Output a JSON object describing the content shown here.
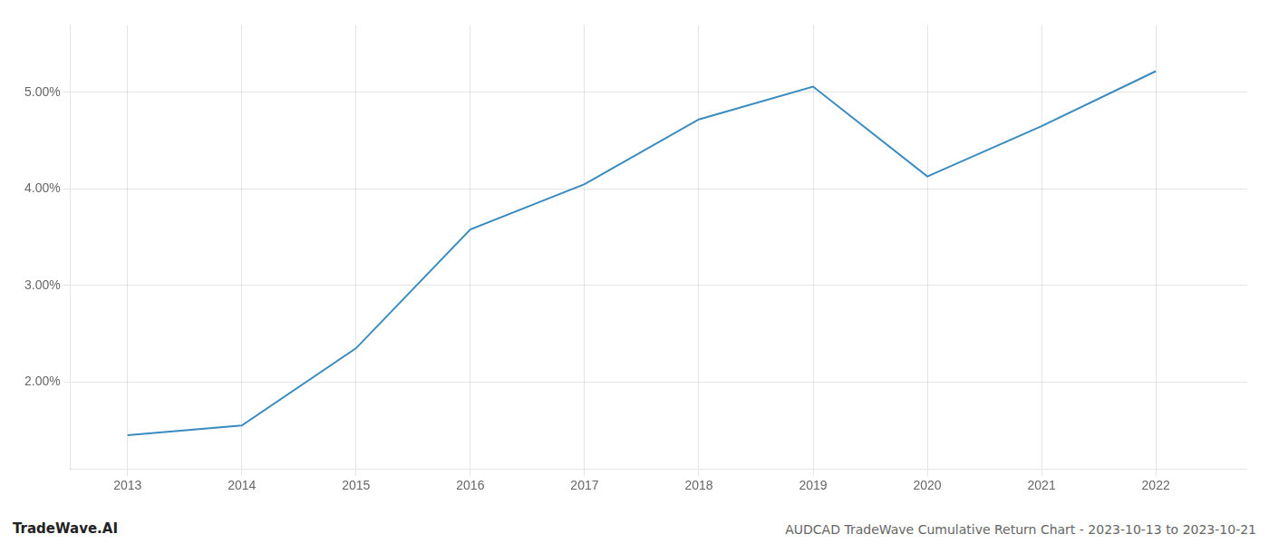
{
  "chart_data": {
    "type": "line",
    "x": [
      2013,
      2014,
      2015,
      2016,
      2017,
      2018,
      2019,
      2020,
      2021,
      2022
    ],
    "values": [
      1.45,
      1.55,
      2.35,
      3.58,
      4.05,
      4.72,
      5.06,
      4.13,
      4.65,
      5.22
    ],
    "color": "#3a8bbf",
    "xlim": [
      2012.5,
      2022.8
    ],
    "xticks": [
      2013,
      2014,
      2015,
      2016,
      2017,
      2018,
      2019,
      2020,
      2021,
      2022
    ],
    "ylim": [
      1.1,
      5.7
    ],
    "yticks": [
      {
        "value": 2.0,
        "label": "2.00%"
      },
      {
        "value": 3.0,
        "label": "3.00%"
      },
      {
        "value": 4.0,
        "label": "4.00%"
      },
      {
        "value": 5.0,
        "label": "5.00%"
      }
    ],
    "grid": true,
    "annotations": [
      "TradeWave.AI",
      "AUDCAD TradeWave Cumulative Return Chart - 2023-10-13 to 2023-10-21"
    ]
  }
}
